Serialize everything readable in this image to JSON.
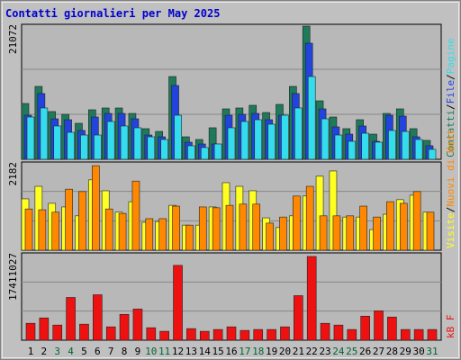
{
  "chart_data": [
    {
      "type": "bar",
      "title": "Contatti giornalieri per May 2025",
      "ylim": [
        0,
        21072
      ],
      "legend_separator": "/",
      "series": [
        {
          "name": "Contatti",
          "color": "#1e7a5a",
          "values": [
            8710,
            11380,
            7450,
            7020,
            5620,
            7730,
            8010,
            8010,
            7160,
            4780,
            4350,
            12920,
            3510,
            3090,
            4920,
            7870,
            8010,
            8430,
            7300,
            8570,
            11380,
            20790,
            9130,
            6600,
            4780,
            6180,
            3930,
            7160,
            7870,
            4780,
            2950
          ]
        },
        {
          "name": "File",
          "color": "#2244dd",
          "values": [
            6880,
            10260,
            6320,
            6180,
            4500,
            6600,
            7160,
            7160,
            6320,
            3790,
            3510,
            11520,
            2670,
            2390,
            2390,
            6880,
            7020,
            7160,
            6180,
            6880,
            10260,
            18120,
            7870,
            5060,
            3930,
            5200,
            2810,
            6880,
            6740,
            3510,
            2110
          ]
        },
        {
          "name": "Pagine",
          "color": "#33ddee",
          "values": [
            6600,
            8010,
            5200,
            4210,
            3790,
            3790,
            5900,
            5200,
            4920,
            3510,
            3090,
            6880,
            2110,
            1830,
            2390,
            4920,
            5900,
            6180,
            5480,
            6880,
            8010,
            12920,
            6320,
            3790,
            2810,
            4070,
            2670,
            4500,
            4350,
            3090,
            1550
          ]
        }
      ]
    },
    {
      "type": "bar",
      "ylim": [
        0,
        2182
      ],
      "legend_separator": "/",
      "series": [
        {
          "name": "Visite",
          "color": "#ffff22",
          "values": [
            1270,
            1580,
            1160,
            1070,
            850,
            1740,
            1470,
            940,
            1200,
            690,
            710,
            1110,
            620,
            620,
            1070,
            1670,
            1580,
            1470,
            800,
            560,
            850,
            1340,
            1830,
            1960,
            820,
            820,
            510,
            890,
            1250,
            1360,
            940
          ]
        },
        {
          "name": "Nuovi di Host",
          "color": "#ff8800",
          "values": [
            1020,
            1000,
            940,
            1510,
            1450,
            2090,
            1020,
            910,
            1710,
            780,
            780,
            1090,
            620,
            1070,
            1050,
            1110,
            1140,
            1140,
            670,
            820,
            1340,
            1580,
            850,
            850,
            850,
            1090,
            820,
            1200,
            1160,
            1450,
            940
          ]
        }
      ]
    },
    {
      "type": "bar",
      "ylim": [
        0,
        17411027
      ],
      "series": [
        {
          "name": "kB F",
          "color": "#ee1111",
          "values": [
            3375600,
            4441600,
            3020300,
            8527800,
            3197900,
            9060800,
            2664900,
            5152200,
            6218200,
            2487300,
            1776600,
            14923700,
            2309600,
            1776600,
            2132000,
            2664900,
            1954300,
            2132000,
            2132000,
            2664900,
            8883200,
            16700300,
            3375600,
            3020300,
            2132000,
            4796900,
            5862900,
            4619200,
            2132000,
            2132000,
            2132000
          ]
        }
      ],
      "categories": [
        "1",
        "2",
        "3",
        "4",
        "5",
        "6",
        "7",
        "8",
        "9",
        "10",
        "11",
        "12",
        "13",
        "14",
        "15",
        "16",
        "17",
        "18",
        "19",
        "20",
        "21",
        "22",
        "23",
        "24",
        "25",
        "26",
        "27",
        "28",
        "29",
        "30",
        "31"
      ],
      "category_colors": [
        "#000000",
        "#000000",
        "#006633",
        "#006633",
        "#000000",
        "#000000",
        "#000000",
        "#000000",
        "#000000",
        "#006633",
        "#006633",
        "#000000",
        "#000000",
        "#000000",
        "#000000",
        "#000000",
        "#006633",
        "#006633",
        "#000000",
        "#000000",
        "#000000",
        "#000000",
        "#000000",
        "#006633",
        "#006633",
        "#000000",
        "#000000",
        "#000000",
        "#000000",
        "#000000",
        "#006633"
      ]
    }
  ]
}
